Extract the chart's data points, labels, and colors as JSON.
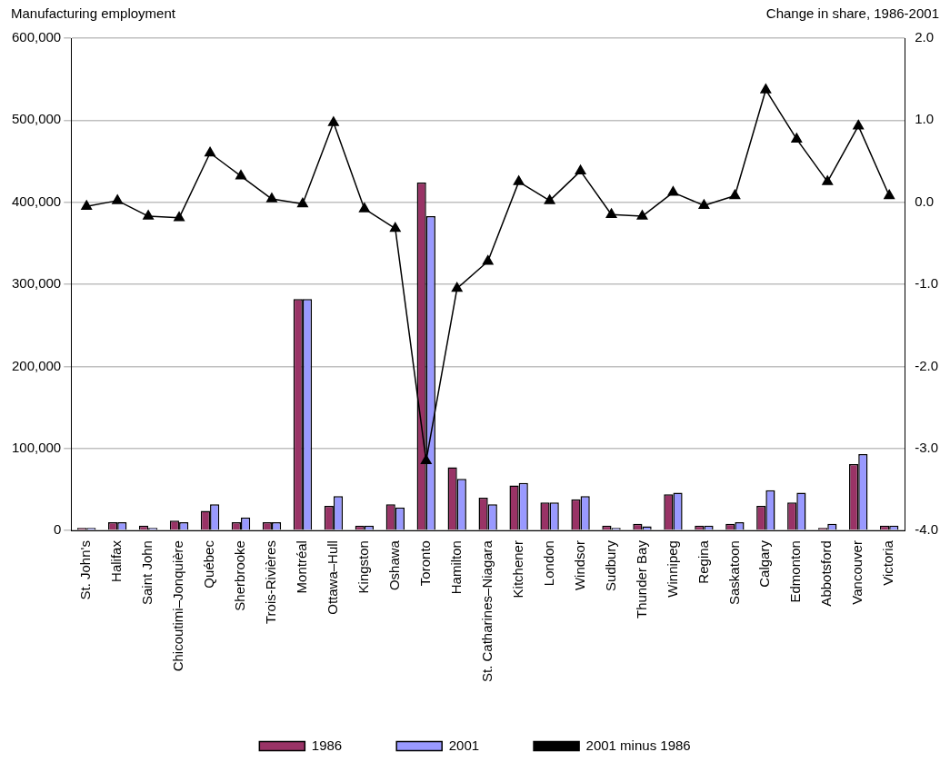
{
  "chart_data": {
    "type": "bar",
    "ylabel": "Manufacturing employment",
    "y2label": "Change in share, 1986-2001",
    "categories": [
      "St. John's",
      "Halifax",
      "Saint John",
      "Chicoutimi–Jonquière",
      "Québec",
      "Sherbrooke",
      "Trois-Rivières",
      "Montréal",
      "Ottawa–Hull",
      "Kingston",
      "Oshawa",
      "Toronto",
      "Hamilton",
      "St. Catharines–Niagara",
      "Kitchener",
      "London",
      "Windsor",
      "Sudbury",
      "Thunder Bay",
      "Winnipeg",
      "Regina",
      "Saskatoon",
      "Calgary",
      "Edmonton",
      "Abbotsford",
      "Vancouver",
      "Victoria"
    ],
    "series": [
      {
        "name": "1986",
        "color": "#993366",
        "values": [
          3000,
          10000,
          6000,
          12000,
          24000,
          10000,
          10000,
          282000,
          30000,
          6000,
          32000,
          424000,
          77000,
          40000,
          55000,
          34000,
          38000,
          6000,
          8000,
          44000,
          6000,
          8000,
          30000,
          34000,
          3000,
          81000,
          6000
        ]
      },
      {
        "name": "2001",
        "color": "#9999ff",
        "values": [
          3000,
          10000,
          3000,
          10000,
          32000,
          16000,
          10000,
          282000,
          42000,
          6000,
          28000,
          383000,
          63000,
          32000,
          58000,
          34000,
          42000,
          3000,
          5000,
          46000,
          6000,
          10000,
          49000,
          46000,
          8000,
          93000,
          6000
        ]
      },
      {
        "name": "2001 minus 1986",
        "type": "line",
        "axis": "y2",
        "color": "#000000",
        "marker": "triangle",
        "values": [
          -0.05,
          0.02,
          -0.17,
          -0.19,
          0.6,
          0.32,
          0.04,
          -0.02,
          0.97,
          -0.08,
          -0.32,
          -3.15,
          -1.05,
          -0.72,
          0.25,
          0.02,
          0.38,
          -0.15,
          -0.17,
          0.12,
          -0.04,
          0.08,
          1.37,
          0.77,
          0.25,
          0.93,
          0.08
        ]
      }
    ],
    "ylim": [
      0,
      600000
    ],
    "yticks": [
      0,
      {
        "value": 100000,
        "label": "100,000"
      },
      {
        "value": 200000,
        "label": "200,000"
      },
      {
        "value": 300000,
        "label": "300,000"
      },
      {
        "value": 400000,
        "label": "400,000"
      },
      {
        "value": 500000,
        "label": "500,000"
      },
      {
        "value": 600000,
        "label": "600,000"
      }
    ],
    "y2lim": [
      -4,
      2
    ],
    "y2ticks": [
      {
        "value": -4,
        "label": "-4.0"
      },
      {
        "value": -3,
        "label": "-3.0"
      },
      {
        "value": -2,
        "label": "-2.0"
      },
      {
        "value": -1,
        "label": "-1.0"
      },
      {
        "value": 0,
        "label": "0.0"
      },
      {
        "value": 1,
        "label": "1.0"
      },
      {
        "value": 2,
        "label": "2.0"
      }
    ],
    "grid": "y",
    "legend": "bottom"
  }
}
